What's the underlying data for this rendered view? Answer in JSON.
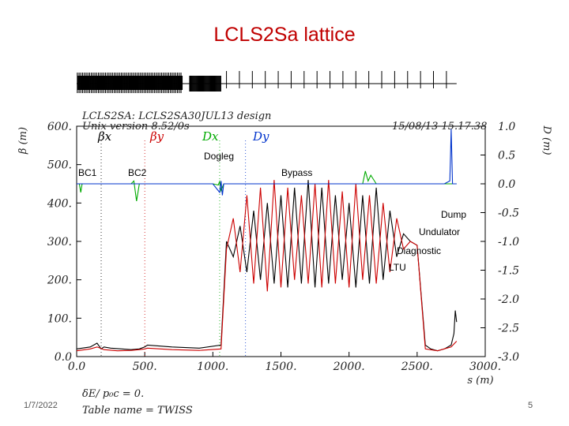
{
  "slide": {
    "title": "LCLS2Sa lattice",
    "date": "1/7/2022",
    "page_number": "5"
  },
  "plot_header": {
    "line1": "LCLS2SA: LCLS2SA30JUL13 design",
    "line2": "Unix version 8.52/0s",
    "timestamp": "15/08/13 15.17.38",
    "footer1": "δE/ p₀c = 0.",
    "footer2": "Table name = TWISS"
  },
  "legend": [
    {
      "label": "βx",
      "color": "#000000"
    },
    {
      "label": "βy",
      "color": "#cc0000"
    },
    {
      "label": "Dx",
      "color": "#00aa00"
    },
    {
      "label": "Dy",
      "color": "#0033cc"
    }
  ],
  "annotations": {
    "bc1": "BC1",
    "bc2": "BC2",
    "dogleg": "Dogleg",
    "bypass": "Bypass",
    "dump": "Dump",
    "undulator": "Undulator",
    "diagnostic": "Diagnostic",
    "ltu": "LTU"
  },
  "chart_data": {
    "type": "line",
    "title": "LCLS2SA: LCLS2SA30JUL13 design",
    "xlabel": "s (m)",
    "ylabel_left": "β (m)",
    "ylabel_right": "D (m)",
    "xlim": [
      0,
      3000
    ],
    "ylim_left": [
      0,
      600
    ],
    "ylim_right": [
      -3.0,
      1.0
    ],
    "x_ticks": [
      "0.0",
      "500.",
      "1000.",
      "1500.",
      "2000.",
      "2500.",
      "3000."
    ],
    "y_ticks_left": [
      "0.0",
      "100.",
      "200.",
      "300.",
      "400.",
      "500.",
      "600."
    ],
    "y_ticks_right": [
      "-3.0",
      "-2.5",
      "-2.0",
      "-1.5",
      "-1.0",
      "-0.5",
      "0.0",
      "0.5",
      "1.0"
    ],
    "grid": false,
    "series": [
      {
        "name": "βx",
        "axis": "left",
        "color": "#000000",
        "x": [
          0,
          100,
          150,
          180,
          200,
          250,
          400,
          460,
          500,
          520,
          700,
          900,
          1060,
          1100,
          1150,
          1200,
          1250,
          1300,
          1350,
          1400,
          1450,
          1500,
          1550,
          1600,
          1650,
          1700,
          1750,
          1800,
          1850,
          1900,
          1950,
          2000,
          2050,
          2100,
          2150,
          2200,
          2250,
          2300,
          2350,
          2400,
          2450,
          2500,
          2560,
          2600,
          2650,
          2700,
          2750,
          2770,
          2780,
          2790
        ],
        "y": [
          20,
          25,
          35,
          20,
          25,
          22,
          18,
          20,
          25,
          30,
          25,
          22,
          30,
          300,
          260,
          340,
          220,
          380,
          200,
          400,
          190,
          420,
          180,
          440,
          190,
          460,
          180,
          440,
          190,
          420,
          200,
          400,
          180,
          420,
          190,
          440,
          200,
          380,
          260,
          320,
          300,
          290,
          30,
          20,
          15,
          20,
          30,
          60,
          120,
          90
        ]
      },
      {
        "name": "βy",
        "axis": "left",
        "color": "#cc0000",
        "x": [
          0,
          100,
          150,
          200,
          300,
          400,
          460,
          500,
          520,
          700,
          900,
          1060,
          1100,
          1150,
          1200,
          1250,
          1300,
          1350,
          1400,
          1450,
          1500,
          1550,
          1600,
          1650,
          1700,
          1750,
          1800,
          1850,
          1900,
          1950,
          2000,
          2050,
          2100,
          2150,
          2200,
          2250,
          2300,
          2350,
          2400,
          2450,
          2500,
          2560,
          2650,
          2750,
          2790
        ],
        "y": [
          15,
          20,
          25,
          18,
          15,
          16,
          18,
          20,
          22,
          18,
          16,
          20,
          280,
          360,
          220,
          420,
          190,
          440,
          170,
          460,
          180,
          440,
          200,
          420,
          190,
          450,
          180,
          460,
          190,
          430,
          180,
          450,
          200,
          420,
          190,
          400,
          220,
          360,
          280,
          300,
          290,
          20,
          15,
          25,
          40
        ]
      },
      {
        "name": "Dx",
        "axis": "right",
        "color": "#00aa00",
        "x": [
          0,
          20,
          30,
          40,
          60,
          400,
          420,
          440,
          460,
          500,
          900,
          1000,
          1040,
          1050,
          1060,
          1080,
          1100,
          2000,
          2100,
          2120,
          2140,
          2160,
          2200,
          2790
        ],
        "y": [
          0.0,
          0.0,
          -0.15,
          0.0,
          0.0,
          0.0,
          0.05,
          -0.3,
          0.0,
          0.0,
          0.0,
          0.0,
          -0.02,
          0.04,
          -0.12,
          0.0,
          0.0,
          0.0,
          0.0,
          0.22,
          0.05,
          0.15,
          0.0,
          0.0
        ]
      },
      {
        "name": "Dy",
        "axis": "right",
        "color": "#0033cc",
        "x": [
          0,
          1000,
          1050,
          1060,
          1070,
          1080,
          1100,
          2700,
          2740,
          2745,
          2750,
          2760,
          2790
        ],
        "y": [
          0.0,
          0.0,
          -0.15,
          0.05,
          -0.2,
          0.0,
          0.0,
          0.0,
          0.05,
          0.5,
          0.95,
          0.0,
          0.0
        ]
      }
    ]
  }
}
